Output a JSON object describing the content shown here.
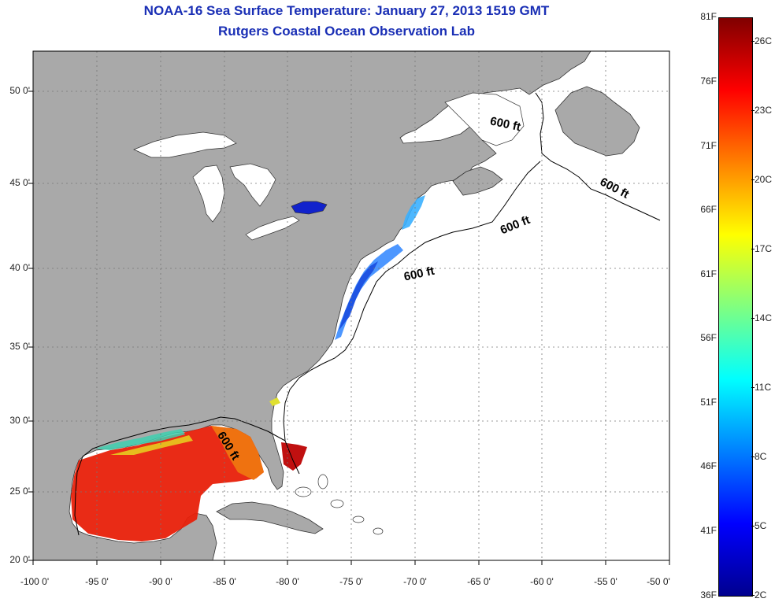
{
  "header": {
    "title": "NOAA-16 Sea Surface Temperature:  January 27, 2013 1519 GMT",
    "subtitle": "Rutgers Coastal Ocean Observation Lab"
  },
  "map": {
    "lon_range": [
      -100,
      -50
    ],
    "lat_range": [
      20,
      52
    ],
    "x_tick_labels": [
      "-100 0'",
      "-95 0'",
      "-90 0'",
      "-85 0'",
      "-80 0'",
      "-75 0'",
      "-70 0'",
      "-65 0'",
      "-60 0'",
      "-55 0'",
      "-50 0'"
    ],
    "y_tick_labels": [
      "50 0'",
      "45 0'",
      "40 0'",
      "35 0'",
      "30 0'",
      "25 0'",
      "20 0'"
    ],
    "contour_label": "600 ft",
    "colors": {
      "land": "#a9a9a9",
      "ocean": "#ffffff",
      "grid": "#888888"
    }
  },
  "colorbar": {
    "fahrenheit_labels": [
      "81F",
      "76F",
      "71F",
      "66F",
      "61F",
      "56F",
      "51F",
      "46F",
      "41F",
      "36F"
    ],
    "celsius_labels": [
      "26C",
      "23C",
      "20C",
      "17C",
      "14C",
      "11C",
      "8C",
      "5C",
      "2C"
    ],
    "range_F": [
      36,
      81
    ],
    "range_C": [
      2,
      27
    ],
    "colormap": [
      "#00008f",
      "#0000ff",
      "#0080ff",
      "#00ffff",
      "#80ff80",
      "#ffff00",
      "#ff8000",
      "#ff0000",
      "#800000"
    ]
  }
}
